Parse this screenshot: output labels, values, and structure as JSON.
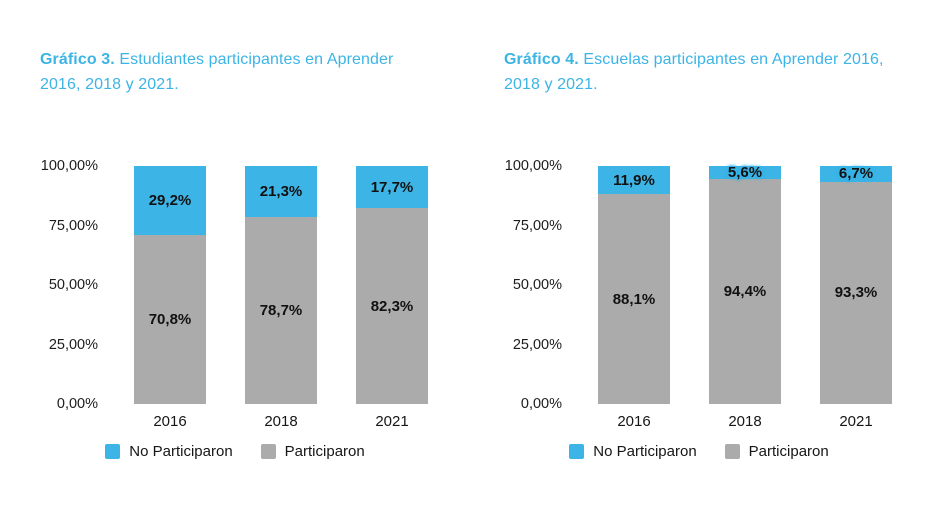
{
  "page": {
    "background": "#ffffff",
    "accent_blue": "#3CB4E6",
    "series_gray": "#ABABAB"
  },
  "chart_data": [
    {
      "type": "bar",
      "stacked": true,
      "title_bold": "Gráfico 3.",
      "title_rest": " Estudiantes participantes en Aprender 2016, 2018 y 2021.",
      "categories": [
        "2016",
        "2018",
        "2021"
      ],
      "series": [
        {
          "name": "Participaron",
          "color": "#ABABAB",
          "values": [
            70.8,
            78.7,
            82.3
          ],
          "labels": [
            "70,8%",
            "78,7%",
            "82,3%"
          ]
        },
        {
          "name": "No Participaron",
          "color": "#3CB4E6",
          "values": [
            29.2,
            21.3,
            17.7
          ],
          "labels": [
            "29,2%",
            "21,3%",
            "17,7%"
          ]
        }
      ],
      "y_ticks": [
        "100,00%",
        "75,00%",
        "50,00%",
        "25,00%",
        "0,00%"
      ],
      "ylim": [
        0,
        100
      ],
      "grid": false,
      "legend_position": "bottom",
      "legend": [
        {
          "label": "No Participaron",
          "color": "#3CB4E6"
        },
        {
          "label": "Participaron",
          "color": "#ABABAB"
        }
      ]
    },
    {
      "type": "bar",
      "stacked": true,
      "title_bold": "Gráfico 4.",
      "title_rest": " Escuelas participantes en Aprender 2016, 2018 y 2021.",
      "categories": [
        "2016",
        "2018",
        "2021"
      ],
      "series": [
        {
          "name": "Participaron",
          "color": "#ABABAB",
          "values": [
            88.1,
            94.4,
            93.3
          ],
          "labels": [
            "88,1%",
            "94,4%",
            "93,3%"
          ]
        },
        {
          "name": "No Participaron",
          "color": "#3CB4E6",
          "values": [
            11.9,
            5.6,
            6.7
          ],
          "labels": [
            "11,9%",
            "5,6%",
            "6,7%"
          ]
        }
      ],
      "y_ticks": [
        "100,00%",
        "75,00%",
        "50,00%",
        "25,00%",
        "0,00%"
      ],
      "ylim": [
        0,
        100
      ],
      "grid": false,
      "legend_position": "bottom",
      "legend": [
        {
          "label": "No Participaron",
          "color": "#3CB4E6"
        },
        {
          "label": "Participaron",
          "color": "#ABABAB"
        }
      ]
    }
  ]
}
